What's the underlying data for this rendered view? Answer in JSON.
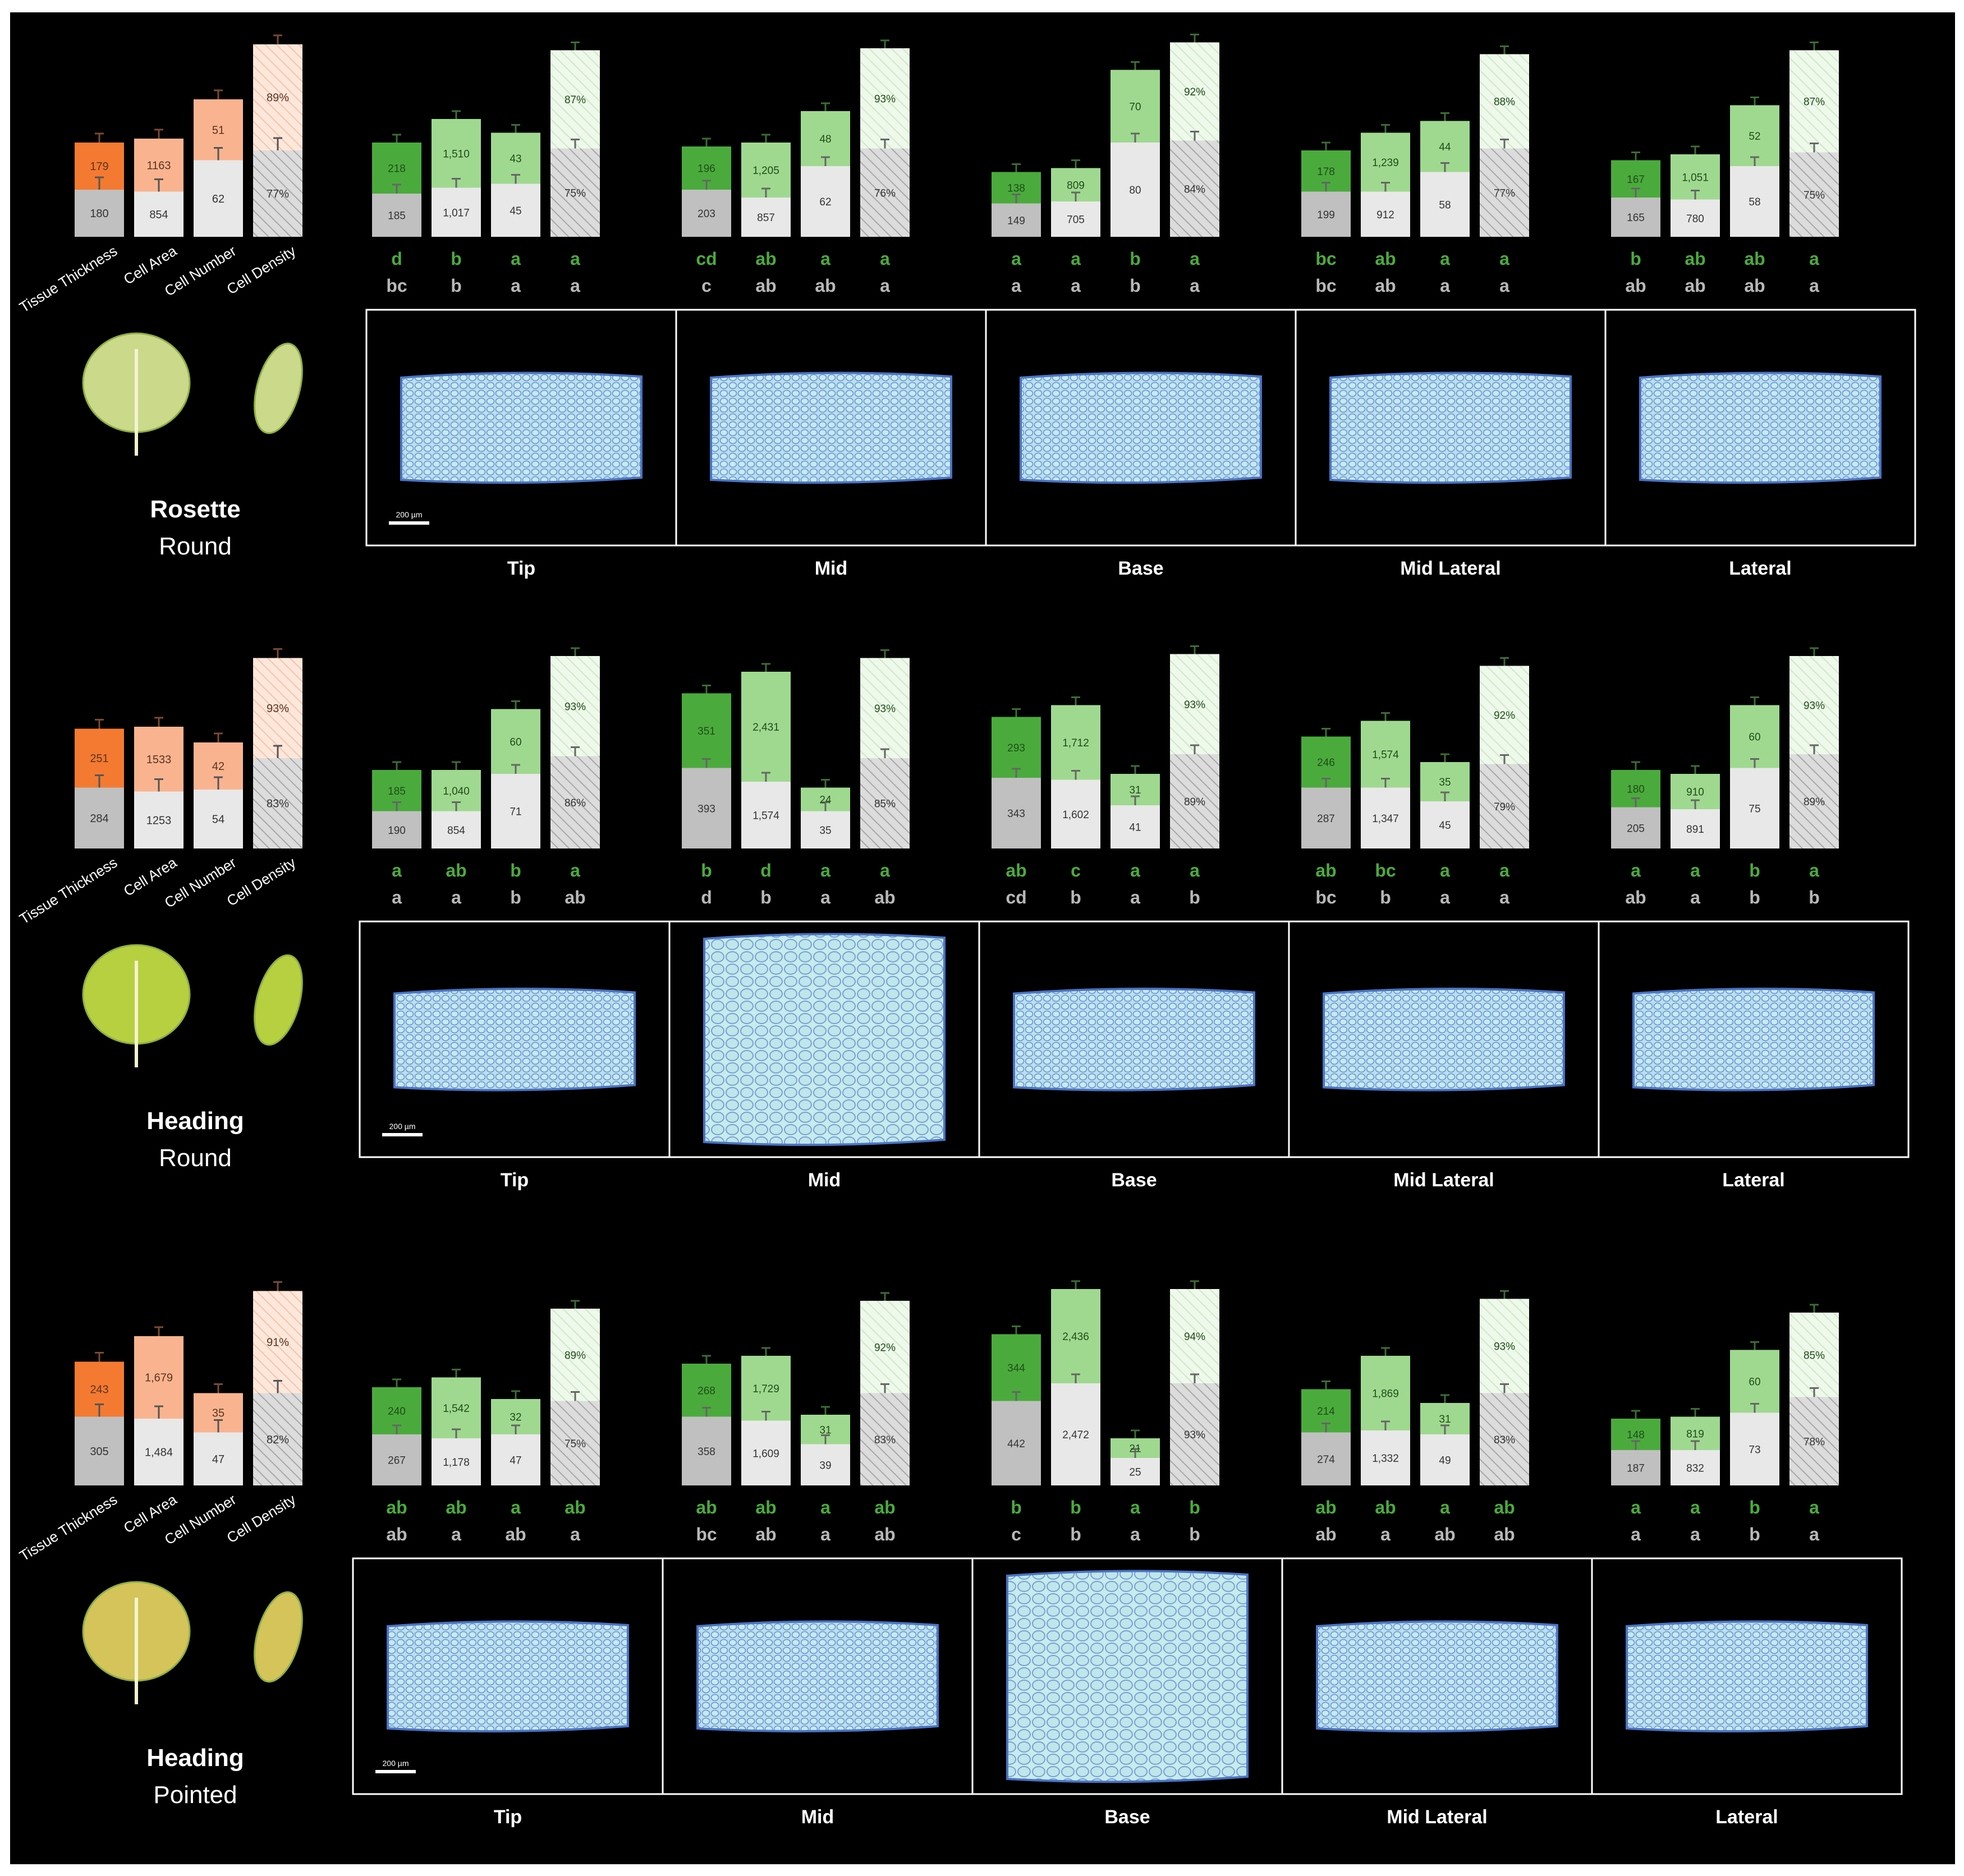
{
  "figure": {
    "background": "#000000",
    "colors": {
      "orange": "#f47a31",
      "orange_light": "#f9b48f",
      "orange_pale": "#fde7db",
      "dark_green": "#4aab3c",
      "light_green": "#9fd98f",
      "pale_green": "#e4f4df",
      "gray": "#c0c0c0",
      "light_gray": "#e8e8e8",
      "white_gray": "#f0f0f0",
      "tissue_fill": "#bfe6ea",
      "tissue_cell": "#6f94cc",
      "panel_border": "#ffffff",
      "letter_green": "#4aab3c",
      "letter_gray": "#b8b8b8"
    },
    "legend_categories": [
      "Tissue Thickness",
      "Cell Area",
      "Cell Number",
      "Cell Density"
    ],
    "position_labels": [
      "Tip",
      "Mid",
      "Base",
      "Mid Lateral",
      "Lateral"
    ],
    "scale_bar": "200 µm"
  },
  "chart_data": [
    {
      "type": "bar",
      "stacked": true,
      "group_title": "Rosette",
      "group_subtitle": "Round",
      "categories": [
        "Tissue Thickness",
        "Cell Area",
        "Cell Number",
        "Cell Density"
      ],
      "overall": {
        "lower": [
          "180",
          "854",
          "62",
          "77%"
        ],
        "upper": [
          "179",
          "1163",
          "51",
          "89%"
        ],
        "lower_rel": [
          0.24,
          0.23,
          0.39,
          0.44
        ],
        "upper_rel": [
          0.48,
          0.5,
          0.7,
          0.98
        ]
      },
      "positions": [
        {
          "name": "Tip",
          "lower": [
            "185",
            "1,017",
            "45",
            "75%"
          ],
          "upper": [
            "218",
            "1,510",
            "43",
            "87%"
          ],
          "lower_rel": [
            0.22,
            0.25,
            0.27,
            0.45
          ],
          "upper_rel": [
            0.48,
            0.6,
            0.53,
            0.95
          ],
          "letters_upper": [
            "d",
            "b",
            "a",
            "a"
          ],
          "letters_lower": [
            "bc",
            "b",
            "a",
            "a"
          ]
        },
        {
          "name": "Mid",
          "lower": [
            "203",
            "857",
            "62",
            "76%"
          ],
          "upper": [
            "196",
            "1,205",
            "48",
            "93%"
          ],
          "lower_rel": [
            0.24,
            0.2,
            0.36,
            0.45
          ],
          "upper_rel": [
            0.46,
            0.48,
            0.64,
            0.96
          ],
          "letters_upper": [
            "cd",
            "ab",
            "a",
            "a"
          ],
          "letters_lower": [
            "c",
            "ab",
            "ab",
            "a"
          ]
        },
        {
          "name": "Base",
          "lower": [
            "149",
            "705",
            "80",
            "84%"
          ],
          "upper": [
            "138",
            "809",
            "70",
            "92%"
          ],
          "lower_rel": [
            0.17,
            0.18,
            0.48,
            0.49
          ],
          "upper_rel": [
            0.33,
            0.35,
            0.85,
            0.99
          ],
          "letters_upper": [
            "a",
            "a",
            "b",
            "a"
          ],
          "letters_lower": [
            "a",
            "a",
            "b",
            "a"
          ]
        },
        {
          "name": "Mid Lateral",
          "lower": [
            "199",
            "912",
            "58",
            "77%"
          ],
          "upper": [
            "178",
            "1,239",
            "44",
            "88%"
          ],
          "lower_rel": [
            0.23,
            0.23,
            0.33,
            0.45
          ],
          "upper_rel": [
            0.44,
            0.53,
            0.59,
            0.93
          ],
          "letters_upper": [
            "bc",
            "ab",
            "a",
            "a"
          ],
          "letters_lower": [
            "bc",
            "ab",
            "a",
            "a"
          ]
        },
        {
          "name": "Lateral",
          "lower": [
            "165",
            "780",
            "58",
            "75%"
          ],
          "upper": [
            "167",
            "1,051",
            "52",
            "87%"
          ],
          "lower_rel": [
            0.2,
            0.19,
            0.36,
            0.43
          ],
          "upper_rel": [
            0.39,
            0.42,
            0.67,
            0.95
          ],
          "letters_upper": [
            "b",
            "ab",
            "ab",
            "a"
          ],
          "letters_lower": [
            "ab",
            "ab",
            "ab",
            "a"
          ]
        }
      ]
    },
    {
      "type": "bar",
      "stacked": true,
      "group_title": "Heading",
      "group_subtitle": "Round",
      "categories": [
        "Tissue Thickness",
        "Cell Area",
        "Cell Number",
        "Cell Density"
      ],
      "overall": {
        "lower": [
          "284",
          "1253",
          "54",
          "83%"
        ],
        "upper": [
          "251",
          "1533",
          "42",
          "93%"
        ],
        "lower_rel": [
          0.31,
          0.29,
          0.3,
          0.46
        ],
        "upper_rel": [
          0.61,
          0.62,
          0.54,
          0.97
        ]
      },
      "positions": [
        {
          "name": "Tip",
          "lower": [
            "190",
            "854",
            "71",
            "86%"
          ],
          "upper": [
            "185",
            "1,040",
            "60",
            "93%"
          ],
          "lower_rel": [
            0.19,
            0.19,
            0.38,
            0.47
          ],
          "upper_rel": [
            0.4,
            0.4,
            0.71,
            0.98
          ],
          "letters_upper": [
            "a",
            "ab",
            "b",
            "a"
          ],
          "letters_lower": [
            "a",
            "a",
            "b",
            "ab"
          ]
        },
        {
          "name": "Mid",
          "lower": [
            "393",
            "1,574",
            "35",
            "85%"
          ],
          "upper": [
            "351",
            "2,431",
            "24",
            "93%"
          ],
          "lower_rel": [
            0.41,
            0.34,
            0.19,
            0.46
          ],
          "upper_rel": [
            0.79,
            0.9,
            0.31,
            0.97
          ],
          "letters_upper": [
            "b",
            "d",
            "a",
            "a"
          ],
          "letters_lower": [
            "d",
            "b",
            "a",
            "ab"
          ]
        },
        {
          "name": "Base",
          "lower": [
            "343",
            "1,602",
            "41",
            "89%"
          ],
          "upper": [
            "293",
            "1,712",
            "31",
            "93%"
          ],
          "lower_rel": [
            0.36,
            0.35,
            0.22,
            0.48
          ],
          "upper_rel": [
            0.67,
            0.73,
            0.38,
            0.99
          ],
          "letters_upper": [
            "ab",
            "c",
            "a",
            "a"
          ],
          "letters_lower": [
            "cd",
            "b",
            "a",
            "b"
          ]
        },
        {
          "name": "Mid Lateral",
          "lower": [
            "287",
            "1,347",
            "45",
            "79%"
          ],
          "upper": [
            "246",
            "1,574",
            "35",
            "92%"
          ],
          "lower_rel": [
            0.31,
            0.31,
            0.24,
            0.43
          ],
          "upper_rel": [
            0.57,
            0.65,
            0.44,
            0.93
          ],
          "letters_upper": [
            "ab",
            "bc",
            "a",
            "a"
          ],
          "letters_lower": [
            "bc",
            "b",
            "a",
            "a"
          ]
        },
        {
          "name": "Lateral",
          "lower": [
            "205",
            "891",
            "75",
            "89%"
          ],
          "upper": [
            "180",
            "910",
            "60",
            "93%"
          ],
          "lower_rel": [
            0.21,
            0.2,
            0.41,
            0.48
          ],
          "upper_rel": [
            0.4,
            0.38,
            0.73,
            0.98
          ],
          "letters_upper": [
            "a",
            "a",
            "b",
            "a"
          ],
          "letters_lower": [
            "ab",
            "a",
            "b",
            "b"
          ]
        }
      ]
    },
    {
      "type": "bar",
      "stacked": true,
      "group_title": "Heading",
      "group_subtitle": "Pointed",
      "categories": [
        "Tissue Thickness",
        "Cell Area",
        "Cell Number",
        "Cell Density"
      ],
      "overall": {
        "lower": [
          "305",
          "1,484",
          "47",
          "82%"
        ],
        "upper": [
          "243",
          "1,679",
          "35",
          "91%"
        ],
        "lower_rel": [
          0.35,
          0.34,
          0.27,
          0.47
        ],
        "upper_rel": [
          0.63,
          0.76,
          0.47,
          0.99
        ]
      },
      "positions": [
        {
          "name": "Tip",
          "lower": [
            "267",
            "1,178",
            "47",
            "75%"
          ],
          "upper": [
            "240",
            "1,542",
            "32",
            "89%"
          ],
          "lower_rel": [
            0.26,
            0.24,
            0.26,
            0.43
          ],
          "upper_rel": [
            0.5,
            0.55,
            0.44,
            0.9
          ],
          "letters_upper": [
            "ab",
            "ab",
            "a",
            "ab"
          ],
          "letters_lower": [
            "ab",
            "a",
            "ab",
            "a"
          ]
        },
        {
          "name": "Mid",
          "lower": [
            "358",
            "1,609",
            "39",
            "83%"
          ],
          "upper": [
            "268",
            "1,729",
            "31",
            "92%"
          ],
          "lower_rel": [
            0.35,
            0.33,
            0.21,
            0.47
          ],
          "upper_rel": [
            0.62,
            0.66,
            0.36,
            0.94
          ],
          "letters_upper": [
            "ab",
            "ab",
            "a",
            "ab"
          ],
          "letters_lower": [
            "bc",
            "ab",
            "a",
            "ab"
          ]
        },
        {
          "name": "Base",
          "lower": [
            "442",
            "2,472",
            "25",
            "93%"
          ],
          "upper": [
            "344",
            "2,436",
            "21",
            "94%"
          ],
          "lower_rel": [
            0.43,
            0.52,
            0.14,
            0.52
          ],
          "upper_rel": [
            0.77,
            1.0,
            0.24,
            1.0
          ],
          "letters_upper": [
            "b",
            "b",
            "a",
            "b"
          ],
          "letters_lower": [
            "c",
            "b",
            "a",
            "b"
          ]
        },
        {
          "name": "Mid Lateral",
          "lower": [
            "274",
            "1,332",
            "49",
            "83%"
          ],
          "upper": [
            "214",
            "1,869",
            "31",
            "93%"
          ],
          "lower_rel": [
            0.27,
            0.28,
            0.26,
            0.47
          ],
          "upper_rel": [
            0.49,
            0.66,
            0.42,
            0.95
          ],
          "letters_upper": [
            "ab",
            "ab",
            "a",
            "ab"
          ],
          "letters_lower": [
            "ab",
            "a",
            "ab",
            "ab"
          ]
        },
        {
          "name": "Lateral",
          "lower": [
            "187",
            "832",
            "73",
            "78%"
          ],
          "upper": [
            "148",
            "819",
            "60",
            "85%"
          ],
          "lower_rel": [
            0.18,
            0.18,
            0.37,
            0.45
          ],
          "upper_rel": [
            0.34,
            0.35,
            0.69,
            0.88
          ],
          "letters_upper": [
            "a",
            "a",
            "b",
            "a"
          ],
          "letters_lower": [
            "a",
            "a",
            "b",
            "a"
          ]
        }
      ]
    }
  ]
}
